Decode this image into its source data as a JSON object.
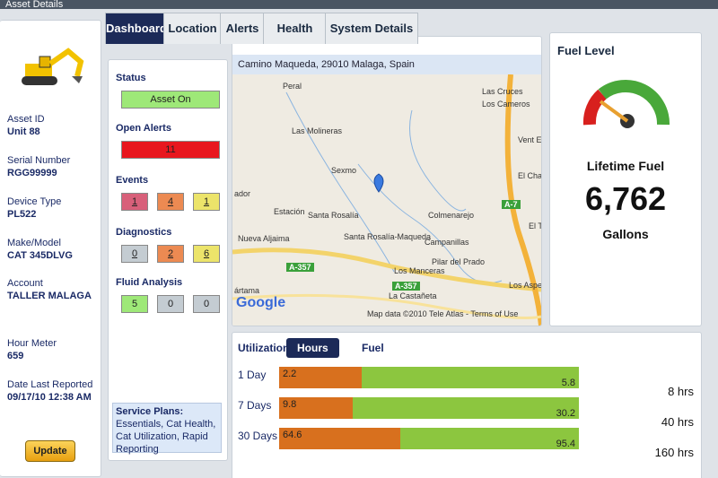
{
  "header": {
    "title": "Asset Details"
  },
  "tabs": [
    "Dashboard",
    "Location",
    "Alerts",
    "Health",
    "System Details"
  ],
  "sidebar": {
    "fields": [
      {
        "label": "Asset ID",
        "value": "Unit 88"
      },
      {
        "label": "Serial Number",
        "value": "RGG99999"
      },
      {
        "label": "Device Type",
        "value": "PL522"
      },
      {
        "label": "Make/Model",
        "value": "CAT 345DLVG"
      },
      {
        "label": "Account",
        "value": "TALLER MALAGA"
      },
      {
        "label": "Hour Meter",
        "value": "659"
      },
      {
        "label": "Date Last Reported",
        "value": "09/17/10 12:38 AM"
      }
    ],
    "button": "Update"
  },
  "status": {
    "sections": [
      {
        "title": "Status",
        "boxes": [
          {
            "text": "Asset On",
            "color": "#9ee878"
          }
        ]
      },
      {
        "title": "Open Alerts",
        "boxes": [
          {
            "text": "11",
            "color": "#e8161e"
          }
        ]
      },
      {
        "title": "Events",
        "boxes": [
          {
            "text": "1",
            "color": "#d8607a"
          },
          {
            "text": "4",
            "color": "#ec8a52"
          },
          {
            "text": "1",
            "color": "#ece46a"
          }
        ]
      },
      {
        "title": "Diagnostics",
        "boxes": [
          {
            "text": "0",
            "color": "#c4ccd2"
          },
          {
            "text": "2",
            "color": "#ec8a52"
          },
          {
            "text": "6",
            "color": "#ece46a"
          }
        ]
      },
      {
        "title": "Fluid Analysis",
        "boxes": [
          {
            "text": "5",
            "color": "#9ee878"
          },
          {
            "text": "0",
            "color": "#c4ccd2"
          },
          {
            "text": "0",
            "color": "#c4ccd2"
          }
        ]
      }
    ],
    "service_plans": {
      "label": "Service Plans:",
      "text": "Essentials, Cat Health, Cat Utilization, Rapid Reporting"
    }
  },
  "map": {
    "address": "Camino Maqueda, 29010 Malaga, Spain",
    "places": [
      "Peral",
      "Las Cruces",
      "Los Cameros",
      "Las Molineras",
      "Sexmo",
      "Vent El Gat",
      "El Cha",
      "ador",
      "Estación",
      "Santa Rosalía",
      "Santa Rosalía-Maqueda",
      "Colmenarejo",
      "Nueva Aljaima",
      "Campanillas",
      "El T",
      "Pilar del Prado",
      "Los Manceras",
      "Los Asperon",
      "La Castañeta",
      "ártama",
      "Google"
    ],
    "roads": [
      "A-357",
      "A-357",
      "A-7"
    ],
    "attribution": "Map data ©2010  Tele Atlas - Terms of Use"
  },
  "fuel": {
    "title": "Fuel Level",
    "lifetime_label": "Lifetime Fuel",
    "lifetime_value": "6,762",
    "unit": "Gallons"
  },
  "utilization": {
    "label": "Utilization:",
    "tabs": [
      "Hours",
      "Fuel"
    ],
    "colors": [
      "#d8701e",
      "#8cc63f"
    ],
    "rows": [
      {
        "label": "1 Day",
        "values": [
          2.2,
          5.8
        ],
        "total": "8 hrs"
      },
      {
        "label": "7 Days",
        "values": [
          9.8,
          30.2
        ],
        "total": "40 hrs"
      },
      {
        "label": "30 Days",
        "values": [
          64.6,
          95.4
        ],
        "total": "160 hrs"
      }
    ]
  }
}
